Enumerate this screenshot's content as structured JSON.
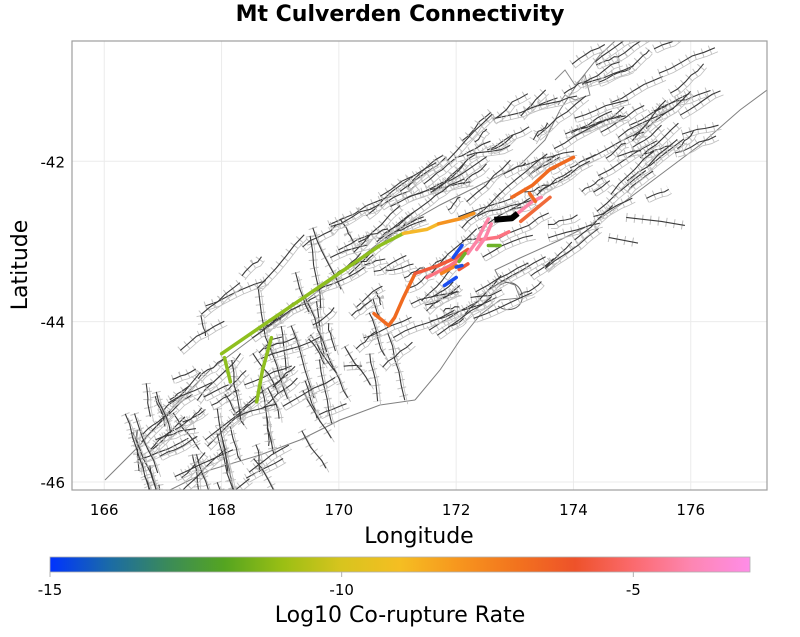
{
  "title": "Mt Culverden Connectivity",
  "colors": {
    "background": "#ffffff",
    "frame": "#9e9e9e",
    "grid": "#ebebeb",
    "fault_trace": "#3a3a3a",
    "fault_plane": "#bdbdbd",
    "coastline": "#808080",
    "selected_fault": "#000000"
  },
  "chart_data": {
    "type": "map",
    "title": "Mt Culverden Connectivity",
    "xlabel": "Longitude",
    "ylabel": "Latitude",
    "xlim": [
      165.45,
      177.3
    ],
    "ylim": [
      -46.1,
      -40.5
    ],
    "xticks": [
      166,
      168,
      170,
      172,
      174,
      176
    ],
    "yticks": [
      -42,
      -44,
      -46
    ],
    "grid": true,
    "colorbar": {
      "label": "Log10 Co-rupture Rate",
      "range": [
        -15,
        -3
      ],
      "ticks": [
        -15,
        -10,
        -5
      ],
      "colormap_stops": [
        {
          "v": -15,
          "color": "#0033ff"
        },
        {
          "v": -14,
          "color": "#1a6aa8"
        },
        {
          "v": -13,
          "color": "#3a8a5a"
        },
        {
          "v": -12,
          "color": "#55a520"
        },
        {
          "v": -11,
          "color": "#9bbf14"
        },
        {
          "v": -10,
          "color": "#d8c41e"
        },
        {
          "v": -9,
          "color": "#f5be22"
        },
        {
          "v": -8,
          "color": "#f7961e"
        },
        {
          "v": -7,
          "color": "#f2731e"
        },
        {
          "v": -6,
          "color": "#ee522a"
        },
        {
          "v": -5,
          "color": "#fb6a6e"
        },
        {
          "v": -4,
          "color": "#fd86b2"
        },
        {
          "v": -3,
          "color": "#ff8de8"
        }
      ]
    },
    "selected_fault": {
      "name": "Mt Culverden",
      "color": "#000000",
      "path": [
        [
          172.65,
          -42.73
        ],
        [
          172.95,
          -42.71
        ],
        [
          173.05,
          -42.65
        ]
      ]
    },
    "segments": [
      {
        "log10_rate": -11.0,
        "color": "#8fbf1f",
        "path": [
          [
            168.0,
            -44.4
          ],
          [
            168.6,
            -44.1
          ],
          [
            169.3,
            -43.75
          ],
          [
            170.1,
            -43.35
          ],
          [
            170.7,
            -43.05
          ],
          [
            171.1,
            -42.9
          ]
        ]
      },
      {
        "log10_rate": -11.0,
        "color": "#8fbf1f",
        "path": [
          [
            168.05,
            -44.45
          ],
          [
            168.15,
            -44.75
          ]
        ]
      },
      {
        "log10_rate": -11.0,
        "color": "#8fbf1f",
        "path": [
          [
            168.85,
            -44.2
          ],
          [
            168.7,
            -44.6
          ],
          [
            168.6,
            -45.0
          ]
        ]
      },
      {
        "log10_rate": -9.0,
        "color": "#f5b82a",
        "path": [
          [
            171.1,
            -42.9
          ],
          [
            171.5,
            -42.85
          ],
          [
            171.7,
            -42.78
          ]
        ]
      },
      {
        "log10_rate": -8.0,
        "color": "#f59320",
        "path": [
          [
            171.7,
            -42.78
          ],
          [
            172.05,
            -42.72
          ],
          [
            172.3,
            -42.65
          ]
        ]
      },
      {
        "log10_rate": -7.0,
        "color": "#f06a20",
        "path": [
          [
            172.95,
            -42.45
          ],
          [
            173.3,
            -42.3
          ],
          [
            173.6,
            -42.1
          ],
          [
            174.0,
            -41.95
          ]
        ]
      },
      {
        "log10_rate": -7.0,
        "color": "#f06a20",
        "path": [
          [
            171.3,
            -43.4
          ],
          [
            171.1,
            -43.7
          ],
          [
            170.95,
            -43.95
          ],
          [
            170.85,
            -44.05
          ],
          [
            170.6,
            -43.9
          ]
        ]
      },
      {
        "log10_rate": -6.0,
        "color": "#f05a3a",
        "path": [
          [
            171.3,
            -43.4
          ],
          [
            171.7,
            -43.3
          ],
          [
            172.0,
            -43.2
          ],
          [
            172.2,
            -43.1
          ]
        ]
      },
      {
        "log10_rate": -5.0,
        "color": "#fc7280",
        "path": [
          [
            171.5,
            -43.45
          ],
          [
            171.9,
            -43.3
          ],
          [
            172.1,
            -43.2
          ]
        ]
      },
      {
        "log10_rate": -5.0,
        "color": "#fc7280",
        "path": [
          [
            172.4,
            -42.98
          ],
          [
            172.7,
            -42.95
          ],
          [
            172.9,
            -42.88
          ]
        ]
      },
      {
        "log10_rate": -4.5,
        "color": "#fd84a6",
        "path": [
          [
            172.2,
            -43.15
          ],
          [
            172.35,
            -43.0
          ],
          [
            172.45,
            -42.85
          ],
          [
            172.55,
            -42.72
          ]
        ]
      },
      {
        "log10_rate": -4.5,
        "color": "#fd84a6",
        "path": [
          [
            172.35,
            -43.1
          ],
          [
            172.5,
            -42.95
          ],
          [
            172.6,
            -42.78
          ]
        ]
      },
      {
        "log10_rate": -4.5,
        "color": "#fd84a6",
        "path": [
          [
            173.05,
            -42.65
          ],
          [
            173.3,
            -42.5
          ],
          [
            173.45,
            -42.45
          ]
        ]
      },
      {
        "log10_rate": -6.0,
        "color": "#f06a3a",
        "path": [
          [
            173.1,
            -42.75
          ],
          [
            173.35,
            -42.6
          ],
          [
            173.6,
            -42.45
          ]
        ]
      },
      {
        "log10_rate": -7.0,
        "color": "#f06a20",
        "path": [
          [
            173.25,
            -42.4
          ],
          [
            173.35,
            -42.5
          ]
        ]
      },
      {
        "log10_rate": -7.5,
        "color": "#f58220",
        "path": [
          [
            171.75,
            -43.4
          ],
          [
            172.0,
            -43.3
          ]
        ]
      },
      {
        "log10_rate": -6.0,
        "color": "#f05a3a",
        "path": [
          [
            172.05,
            -43.35
          ],
          [
            172.2,
            -43.28
          ]
        ]
      },
      {
        "log10_rate": -11.5,
        "color": "#6fb32a",
        "path": [
          [
            172.55,
            -43.05
          ],
          [
            172.75,
            -43.05
          ]
        ]
      },
      {
        "log10_rate": -11.5,
        "color": "#6fb32a",
        "path": [
          [
            172.05,
            -43.25
          ],
          [
            172.15,
            -43.15
          ]
        ]
      },
      {
        "log10_rate": -15.0,
        "color": "#1a4df0",
        "path": [
          [
            171.95,
            -43.2
          ],
          [
            172.1,
            -43.05
          ]
        ]
      },
      {
        "log10_rate": -15.0,
        "color": "#1a4df0",
        "path": [
          [
            171.8,
            -43.55
          ],
          [
            172.0,
            -43.45
          ]
        ]
      },
      {
        "log10_rate": -14.5,
        "color": "#2250e0",
        "path": [
          [
            172.0,
            -43.32
          ],
          [
            172.1,
            -43.3
          ]
        ]
      }
    ]
  }
}
